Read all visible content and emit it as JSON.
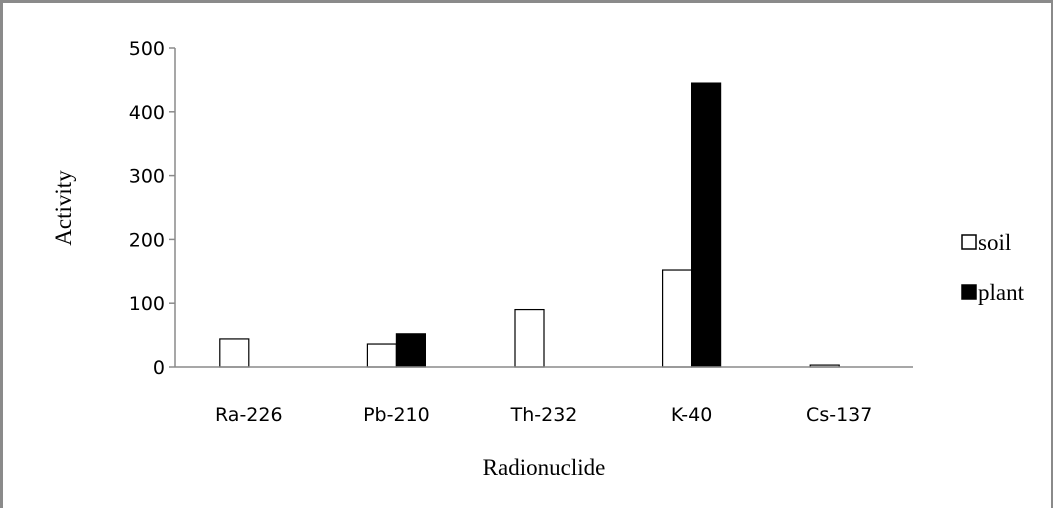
{
  "chart_data": {
    "type": "bar",
    "categories": [
      "Ra-226",
      "Pb-210",
      "Th-232",
      "K-40",
      "Cs-137"
    ],
    "series": [
      {
        "name": "soil",
        "values": [
          44,
          36,
          90,
          152,
          3
        ],
        "fill": "#ffffff",
        "stroke": "#000000"
      },
      {
        "name": "plant",
        "values": [
          0,
          52,
          0,
          445,
          0
        ],
        "fill": "#000000",
        "stroke": "#000000"
      }
    ],
    "xlabel": "Radionuclide",
    "ylabel": "Activity",
    "ylim": [
      0,
      500
    ],
    "yticks": [
      "0",
      "100",
      "200",
      "300",
      "400",
      "500"
    ],
    "grid": false,
    "legend_position": "right"
  }
}
